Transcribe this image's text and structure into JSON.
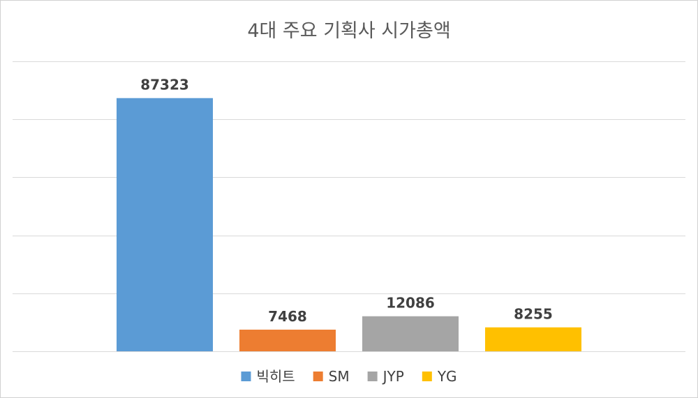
{
  "chart_data": {
    "type": "bar",
    "title": "4대 주요 기획사 시가총액",
    "categories": [
      "빅히트",
      "SM",
      "JYP",
      "YG"
    ],
    "values": [
      87323,
      7468,
      12086,
      8255
    ],
    "colors": [
      "#5b9bd5",
      "#ed7d31",
      "#a5a5a5",
      "#ffc000"
    ],
    "ylim": [
      0,
      100000
    ],
    "grid": true,
    "legend": "bottom",
    "data_labels": true
  }
}
